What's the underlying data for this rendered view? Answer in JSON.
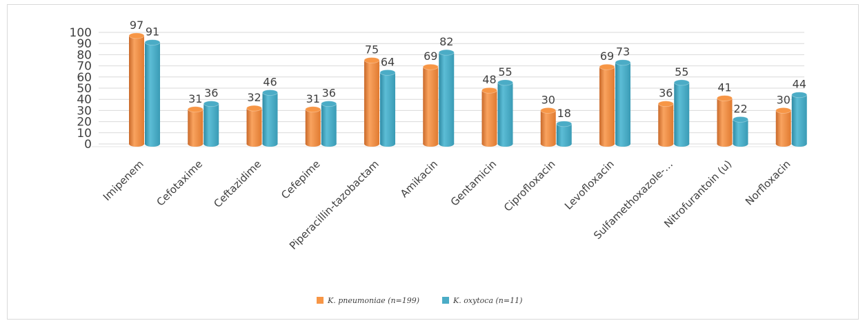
{
  "chart_data": {
    "type": "bar",
    "title": "",
    "xlabel": "",
    "ylabel": "",
    "ylim": [
      0,
      100
    ],
    "yticks": [
      0,
      10,
      20,
      30,
      40,
      50,
      60,
      70,
      80,
      90,
      100
    ],
    "grid": true,
    "legend_position": "bottom",
    "categories": [
      "Imipenem",
      "Cefotaxime",
      "Ceftazidime",
      "Cefepime",
      "Piperacillin-tazobactam",
      "Amikacin",
      "Gentamicin",
      "Ciprofloxacin",
      "Levofloxacin",
      "Sulfamethoxazole-…",
      "Nitrofurantoin (u)",
      "Norfloxacin"
    ],
    "series": [
      {
        "name": "K. pneumoniae (n=199)",
        "color": "#f79646",
        "values": [
          97,
          31,
          32,
          31,
          75,
          69,
          48,
          30,
          69,
          36,
          41,
          30
        ]
      },
      {
        "name": "K. oxytoca (n=11)",
        "color": "#4bacc6",
        "values": [
          91,
          36,
          46,
          36,
          64,
          82,
          55,
          18,
          73,
          55,
          22,
          44
        ]
      }
    ]
  }
}
